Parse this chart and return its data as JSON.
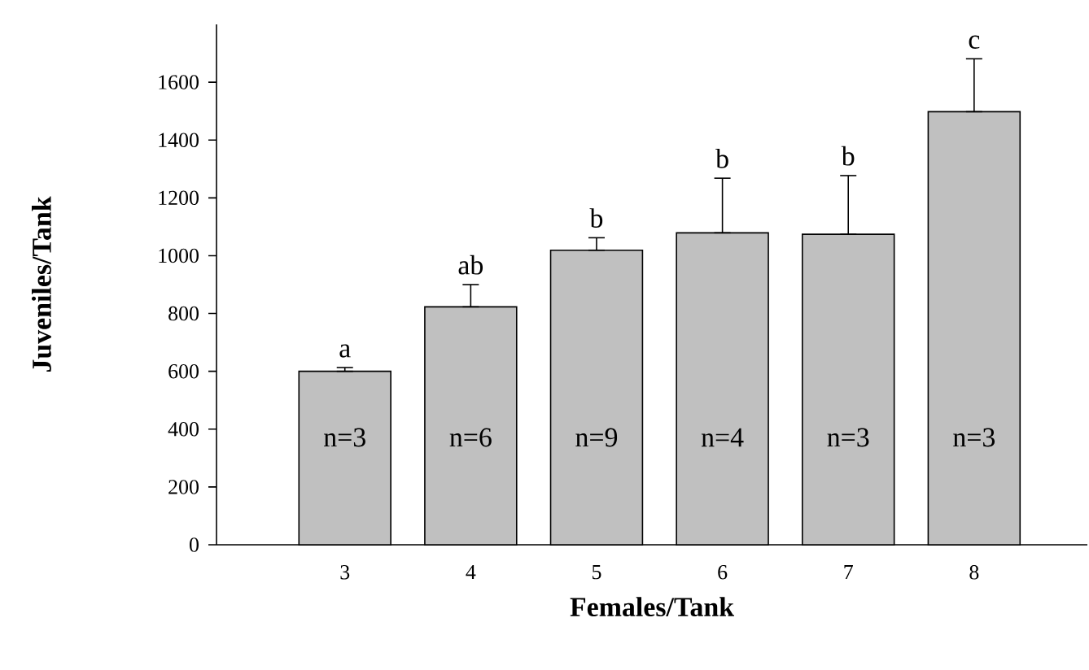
{
  "chart_data": {
    "type": "bar",
    "xlabel": "Females/Tank",
    "ylabel": "Juveniles/Tank",
    "categories": [
      "3",
      "4",
      "5",
      "6",
      "7",
      "8"
    ],
    "values": [
      600,
      823,
      1019,
      1079,
      1074,
      1498
    ],
    "errors": [
      [
        600,
        613
      ],
      [
        823,
        900
      ],
      [
        1019,
        1062
      ],
      [
        1079,
        1268
      ],
      [
        1074,
        1277
      ],
      [
        1498,
        1681
      ]
    ],
    "color": "#c0c0c0",
    "ylim": [
      0,
      1800
    ],
    "yticks": [
      0,
      200,
      400,
      600,
      800,
      1000,
      1200,
      1400,
      1600
    ],
    "grid": false,
    "annotations": [
      {
        "text": "a",
        "x": "3",
        "y": 613
      },
      {
        "text": "ab",
        "x": "4",
        "y": 900
      },
      {
        "text": "b",
        "x": "5",
        "y": 1062
      },
      {
        "text": "b",
        "x": "6",
        "y": 1268
      },
      {
        "text": "b",
        "x": "7",
        "y": 1277
      },
      {
        "text": "c",
        "x": "8",
        "y": 1681
      },
      "n=3",
      "n=6",
      "n=9",
      "n=4",
      "n=3",
      "n=3"
    ]
  }
}
